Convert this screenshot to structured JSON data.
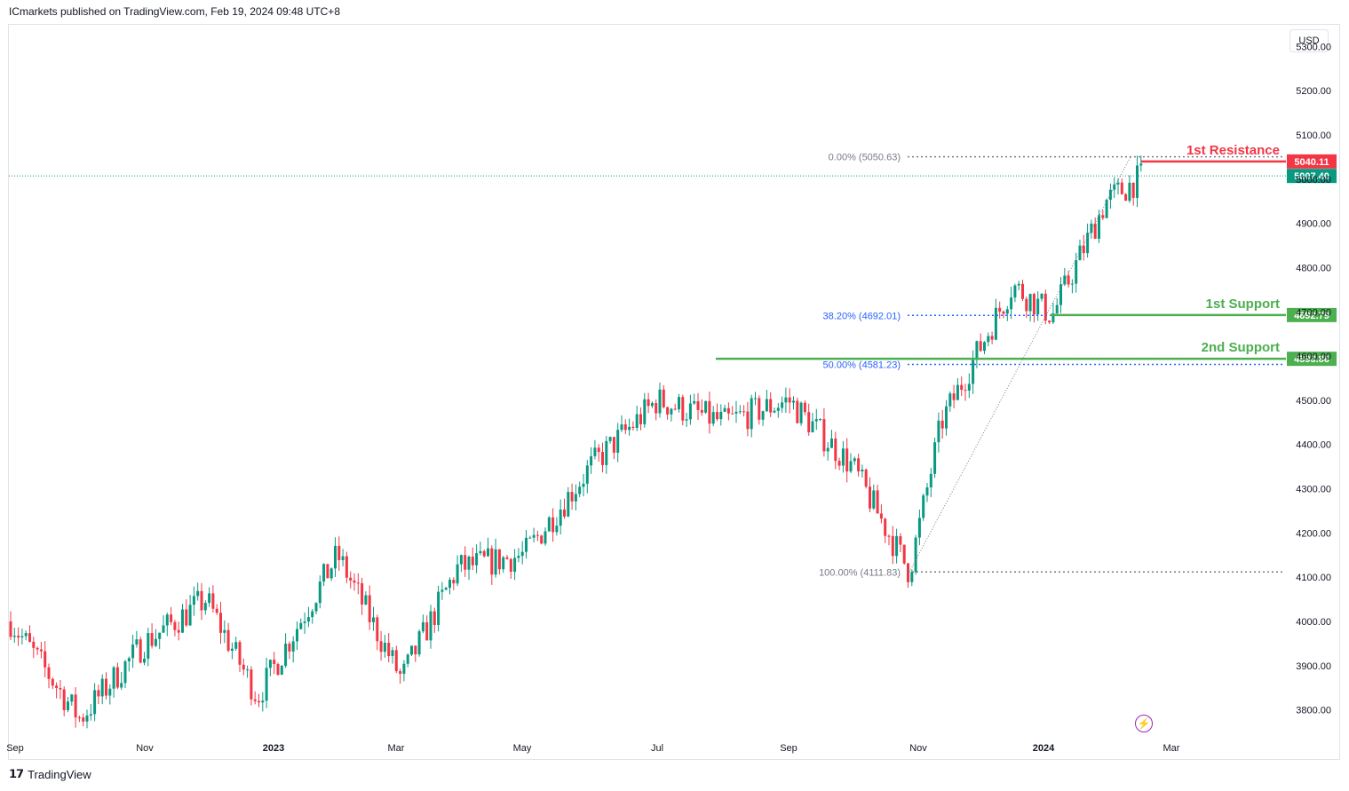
{
  "header": {
    "text": "ICmarkets published on TradingView.com, Feb 19, 2024 09:48 UTC+8"
  },
  "footer": {
    "brand": "TradingView",
    "logo": "tradingview-logo-icon"
  },
  "currency": "USD",
  "chart_data": {
    "type": "candlestick",
    "ylim": [
      3745,
      5345
    ],
    "price_axis_ticks": [
      "5300.00",
      "5200.00",
      "5100.00",
      "5000.00",
      "4900.00",
      "4800.00",
      "4700.00",
      "4600.00",
      "4500.00",
      "4400.00",
      "4300.00",
      "4200.00",
      "4100.00",
      "4000.00",
      "3900.00",
      "3800.00"
    ],
    "x_axis_labels": [
      "Sep",
      "Nov",
      "2023",
      "Mar",
      "May",
      "Jul",
      "Sep",
      "Nov",
      "2024",
      "Mar"
    ],
    "x_axis_bold": [
      "2023",
      "2024"
    ],
    "colors": {
      "up": "#089981",
      "down": "#f23645",
      "support": "#4caf50",
      "resistance": "#f23645",
      "last": "#089981"
    },
    "close_path": [
      [
        "Sep 2022",
        4000
      ],
      [
        "Oct 2022",
        3780
      ],
      [
        "Nov 2022",
        3950
      ],
      [
        "Dec 2022",
        4050
      ],
      [
        "Jan 2023",
        3830
      ],
      [
        "Feb 2023",
        4150
      ],
      [
        "Mar 2023",
        3870
      ],
      [
        "Apr 2023",
        4120
      ],
      [
        "May 2023",
        4150
      ],
      [
        "Jun 2023",
        4350
      ],
      [
        "Jul 2023",
        4500
      ],
      [
        "Aug 2023",
        4450
      ],
      [
        "Sep 2023",
        4500
      ],
      [
        "Oct 2023",
        4350
      ],
      [
        "Oct 27 2023",
        4112
      ],
      [
        "Nov 2023",
        4450
      ],
      [
        "Dec 2023",
        4760
      ],
      [
        "Jan 5 2024",
        4692
      ],
      [
        "Feb 2024",
        4950
      ],
      [
        "Feb 16 2024",
        5007
      ]
    ],
    "last_price": "5007.40",
    "fibonacci": [
      {
        "label": "0.00% (5050.63)",
        "price": 5050.63,
        "color": "#787b86"
      },
      {
        "label": "38.20% (4692.01)",
        "price": 4692.01,
        "color": "#2962ff"
      },
      {
        "label": "50.00% (4581.23)",
        "price": 4581.23,
        "color": "#2962ff"
      },
      {
        "label": "100.00% (4111.83)",
        "price": 4111.83,
        "color": "#787b86"
      }
    ],
    "levels": [
      {
        "name": "1st Resistance",
        "price": 5040.11,
        "price_label": "5040.11",
        "color": "#f23645"
      },
      {
        "name": "1st Support",
        "price": 4692.79,
        "price_label": "4692.79",
        "color": "#4caf50"
      },
      {
        "name": "2nd Support",
        "price": 4593.86,
        "price_label": "4593.86",
        "color": "#4caf50"
      }
    ]
  }
}
